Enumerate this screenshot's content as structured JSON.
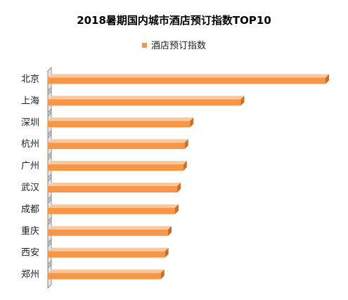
{
  "chart_data": {
    "type": "bar",
    "orientation": "horizontal",
    "title": "2018暑期国内城市酒店预订指数TOP10",
    "categories": [
      "北京",
      "上海",
      "深圳",
      "杭州",
      "广州",
      "武汉",
      "成都",
      "重庆",
      "西安",
      "郑州"
    ],
    "series": [
      {
        "name": "酒店预订指数",
        "values": [
          100,
          69.5,
          51.2,
          49.3,
          48.8,
          46.6,
          45.8,
          43.3,
          42.2,
          40.7
        ],
        "color": "#F79646"
      }
    ],
    "xlim": [
      0,
      100
    ],
    "grid": false,
    "legend_position": "top",
    "style": "3d"
  }
}
